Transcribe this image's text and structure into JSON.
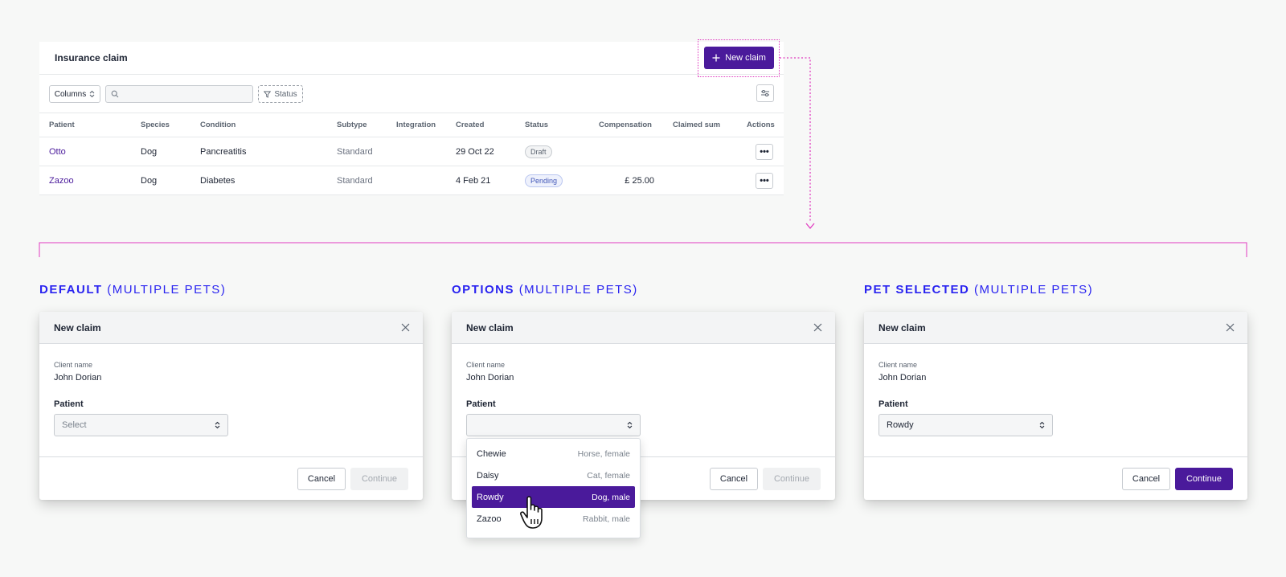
{
  "table": {
    "title": "Insurance claim",
    "new_claim_label": "New claim",
    "columns_label": "Columns",
    "search": {
      "value": "",
      "placeholder": ""
    },
    "status_filter_label": "Status",
    "headers": [
      "Patient",
      "Species",
      "Condition",
      "Subtype",
      "Integration",
      "Created",
      "Status",
      "Compensation",
      "Claimed sum",
      "Actions"
    ],
    "rows": [
      {
        "patient": "Otto",
        "species": "Dog",
        "condition": "Pancreatitis",
        "subtype": "Standard",
        "integration": "",
        "created": "29 Oct 22",
        "status": "Draft",
        "compensation": "",
        "claimed_sum": "",
        "actions_label": "•••"
      },
      {
        "patient": "Zazoo",
        "species": "Dog",
        "condition": "Diabetes",
        "subtype": "Standard",
        "integration": "",
        "created": "4 Feb 21",
        "status": "Pending",
        "compensation": "£ 25.00",
        "claimed_sum": "",
        "actions_label": "•••"
      }
    ]
  },
  "sections": [
    {
      "strong": "DEFAULT",
      "light": "(MULTIPLE PETS)"
    },
    {
      "strong": "OPTIONS",
      "light": "(MULTIPLE PETS)"
    },
    {
      "strong": "PET SELECTED",
      "light": "(MULTIPLE PETS)"
    }
  ],
  "modals": [
    {
      "title": "New claim",
      "client_label": "Client name",
      "client_value": "John Dorian",
      "patient_label": "Patient",
      "select_value": "Select",
      "cancel_label": "Cancel",
      "continue_label": "Continue"
    },
    {
      "title": "New claim",
      "client_label": "Client name",
      "client_value": "John Dorian",
      "patient_label": "Patient",
      "select_value": "",
      "cancel_label": "Cancel",
      "continue_label": "Continue"
    },
    {
      "title": "New claim",
      "client_label": "Client name",
      "client_value": "John Dorian",
      "patient_label": "Patient",
      "select_value": "Rowdy",
      "cancel_label": "Cancel",
      "continue_label": "Continue"
    }
  ],
  "dropdown_options": [
    {
      "name": "Chewie",
      "desc": "Horse, female"
    },
    {
      "name": "Daisy",
      "desc": "Cat, female"
    },
    {
      "name": "Rowdy",
      "desc": "Dog, male"
    },
    {
      "name": "Zazoo",
      "desc": "Rabbit, male"
    }
  ],
  "colors": {
    "primary": "#4a1a9b",
    "heading_blue": "#2a24f0",
    "connector_pink": "#e03cc0",
    "background": "#f7f8f7"
  },
  "icons": [
    "plus-icon",
    "search-icon",
    "filter-icon",
    "sliders-icon",
    "sort-arrows-icon",
    "close-icon",
    "hand-pointer-icon",
    "more-dots-icon"
  ]
}
